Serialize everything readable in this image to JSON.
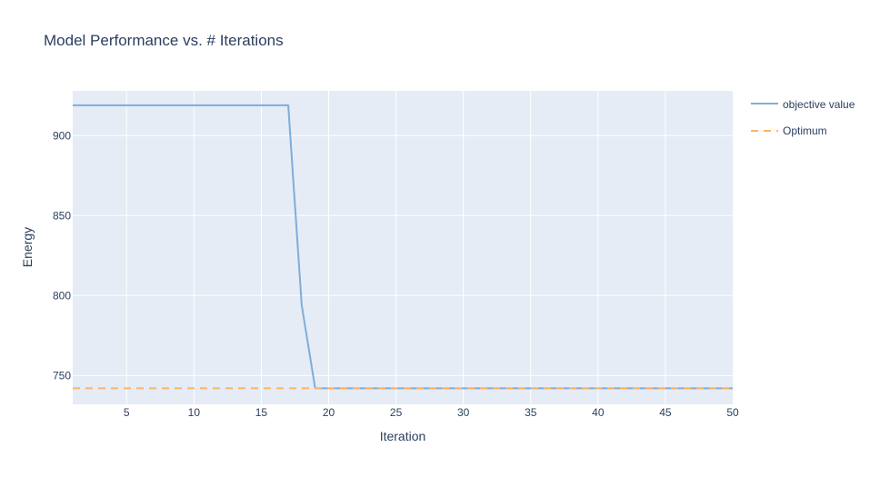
{
  "chart_data": {
    "type": "line",
    "title": "Model Performance vs. # Iterations",
    "xlabel": "Iteration",
    "ylabel": "Energy",
    "xlim": [
      1,
      50
    ],
    "ylim": [
      732,
      928
    ],
    "x_ticks": [
      5,
      10,
      15,
      20,
      25,
      30,
      35,
      40,
      45,
      50
    ],
    "y_ticks": [
      750,
      800,
      850,
      900
    ],
    "grid": true,
    "legend_position": "top-right, outside plot",
    "plot_background": "#e5ecf6",
    "series": [
      {
        "name": "objective value",
        "color": "#7fadd8",
        "dash": "solid",
        "x": [
          1,
          2,
          3,
          4,
          5,
          6,
          7,
          8,
          9,
          10,
          11,
          12,
          13,
          14,
          15,
          16,
          17,
          18,
          19,
          20,
          21,
          22,
          23,
          24,
          25,
          26,
          27,
          28,
          29,
          30,
          31,
          32,
          33,
          34,
          35,
          36,
          37,
          38,
          39,
          40,
          41,
          42,
          43,
          44,
          45,
          46,
          47,
          48,
          49,
          50
        ],
        "values": [
          919,
          919,
          919,
          919,
          919,
          919,
          919,
          919,
          919,
          919,
          919,
          919,
          919,
          919,
          919,
          919,
          919,
          794,
          742,
          742,
          742,
          742,
          742,
          742,
          742,
          742,
          742,
          742,
          742,
          742,
          742,
          742,
          742,
          742,
          742,
          742,
          742,
          742,
          742,
          742,
          742,
          742,
          742,
          742,
          742,
          742,
          742,
          742,
          742,
          742
        ]
      },
      {
        "name": "Optimum",
        "color": "#ffb366",
        "dash": "dash",
        "x": [
          1,
          50
        ],
        "values": [
          742,
          742
        ]
      }
    ]
  }
}
